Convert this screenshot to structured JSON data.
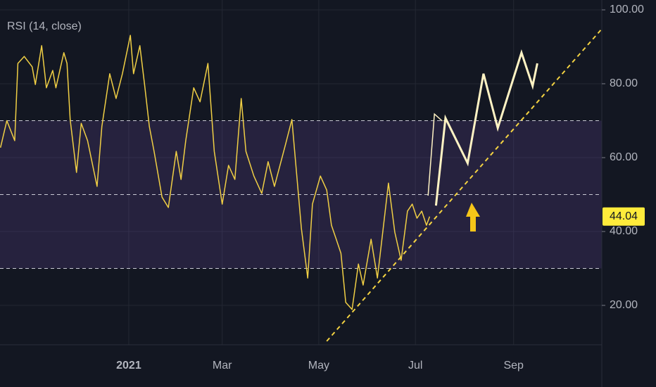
{
  "chart_data": {
    "type": "line",
    "title": "RSI (14, close)",
    "series": [
      {
        "color": "#f0cf45",
        "x": [
          -81,
          -77,
          -72,
          -70,
          -66,
          -61,
          -59,
          -55,
          -52,
          -48,
          -46,
          -41,
          -39,
          -37,
          -33,
          -30,
          -26,
          -20,
          -17,
          -12,
          -8,
          -4,
          1,
          3,
          7,
          10,
          13,
          16,
          21,
          25,
          30,
          33,
          36,
          41,
          45,
          50,
          54,
          59,
          63,
          67,
          71,
          74,
          79,
          84,
          88,
          92,
          99,
          103,
          109,
          113,
          116,
          121,
          125,
          128,
          131,
          134,
          137,
          141,
          145,
          148,
          153,
          157,
          164,
          168,
          172,
          176,
          179,
          182,
          185,
          188,
          190
        ],
        "values": [
          62.7,
          70,
          64.6,
          85.5,
          87.4,
          84.6,
          79.8,
          90.3,
          78.9,
          83.6,
          78.9,
          88.4,
          85.5,
          70.3,
          56,
          69.3,
          64.6,
          52.2,
          68.4,
          82.7,
          76,
          82.7,
          93.1,
          82.7,
          90.3,
          79.8,
          68.4,
          61.7,
          49.3,
          46.5,
          61.7,
          54.1,
          64.6,
          78.9,
          75.1,
          85.5,
          61.7,
          47.4,
          57.9,
          54.1,
          76,
          61.7,
          55,
          50.3,
          58.9,
          52.2,
          63.6,
          70.3,
          40.8,
          27.4,
          47.4,
          55,
          51.2,
          41.7,
          37.9,
          34.1,
          20.8,
          18.9,
          31.2,
          25.5,
          37.9,
          27.4,
          53.1,
          39.8,
          32.2,
          45.5,
          47.4,
          43.6,
          45.5,
          41.7,
          44.04
        ]
      }
    ],
    "levels": [
      70,
      50,
      30
    ],
    "band": [
      30,
      70
    ],
    "band_color": "#7e57c2",
    "trendline": {
      "color": "#f5d442",
      "x": [
        125,
        298
      ],
      "values": [
        10.3,
        94.5
      ]
    },
    "projection": [
      {
        "color": "#fff3c4",
        "width": 1.5,
        "x": [
          189,
          193,
          198
        ],
        "values": [
          49.7,
          71.8,
          69.9
        ]
      },
      {
        "color": "#fff3c4",
        "width": 3,
        "x": [
          194,
          200,
          214,
          224,
          233,
          248,
          255,
          258
        ],
        "values": [
          47.0,
          70.7,
          58.5,
          82.7,
          68,
          88.4,
          79.4,
          85.5
        ]
      }
    ],
    "xlim": [
      -81.3,
      298.7
    ],
    "ylim": [
      9.33,
      102.67
    ],
    "xticks": [
      {
        "value": 0,
        "label": "2021"
      },
      {
        "value": 59,
        "label": "Mar"
      },
      {
        "value": 120,
        "label": "May"
      },
      {
        "value": 181,
        "label": "Jul"
      },
      {
        "value": 243,
        "label": "Sep"
      }
    ],
    "yticks": [
      {
        "value": 100,
        "label": "100.00"
      },
      {
        "value": 80,
        "label": "80.00"
      },
      {
        "value": 60,
        "label": "60.00"
      },
      {
        "value": 40,
        "label": "40.00"
      },
      {
        "value": 20,
        "label": "20.00"
      }
    ],
    "grid": true
  }
}
